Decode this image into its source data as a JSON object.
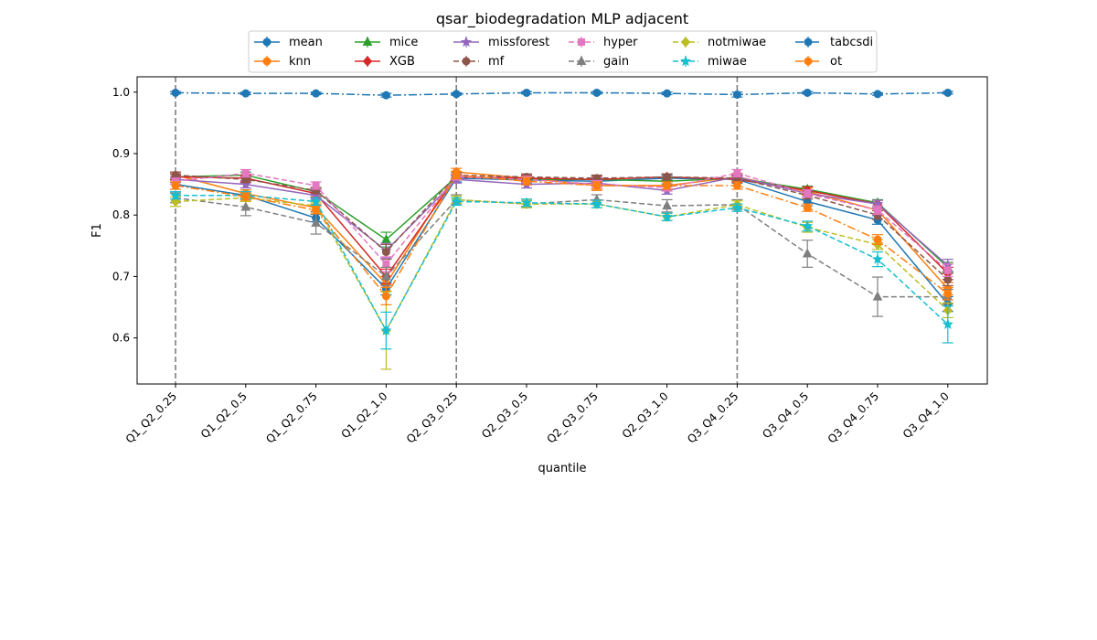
{
  "chart_data": {
    "type": "line",
    "title": "qsar_biodegradation MLP adjacent",
    "xlabel": "quantile",
    "ylabel": "F1",
    "ylim": [
      0.525,
      1.025
    ],
    "yticks": [
      "0.6",
      "0.7",
      "0.8",
      "0.9",
      "1.0"
    ],
    "categories": [
      "Q1_Q2_0.25",
      "Q1_Q2_0.5",
      "Q1_Q2_0.75",
      "Q1_Q2_1.0",
      "Q2_Q3_0.25",
      "Q2_Q3_0.5",
      "Q2_Q3_0.75",
      "Q2_Q3_1.0",
      "Q3_Q4_0.25",
      "Q3_Q4_0.5",
      "Q3_Q4_0.75",
      "Q3_Q4_1.0"
    ],
    "vlines_at_categories": [
      "Q1_Q2_0.25",
      "Q2_Q3_0.25",
      "Q3_Q4_0.25"
    ],
    "grid": false,
    "legend_position": "top-center",
    "series": [
      {
        "name": "mean",
        "color": "#1f77b4",
        "style": "solid",
        "marker": "circle",
        "values": [
          0.85,
          0.832,
          0.795,
          0.68,
          0.86,
          0.857,
          0.855,
          0.86,
          0.858,
          0.822,
          0.792,
          0.655
        ],
        "err": [
          0.008,
          0.006,
          0.006,
          0.01,
          0.006,
          0.005,
          0.005,
          0.005,
          0.006,
          0.007,
          0.007,
          0.012
        ]
      },
      {
        "name": "knn",
        "color": "#ff7f0e",
        "style": "solid",
        "marker": "circle",
        "values": [
          0.865,
          0.835,
          0.812,
          0.688,
          0.87,
          0.86,
          0.848,
          0.848,
          0.862,
          0.838,
          0.808,
          0.68
        ],
        "err": [
          0.005,
          0.006,
          0.006,
          0.012,
          0.006,
          0.005,
          0.008,
          0.006,
          0.006,
          0.006,
          0.007,
          0.01
        ]
      },
      {
        "name": "mice",
        "color": "#2ca02c",
        "style": "solid",
        "marker": "triangle",
        "values": [
          0.862,
          0.865,
          0.838,
          0.76,
          0.862,
          0.858,
          0.858,
          0.855,
          0.86,
          0.842,
          0.82,
          0.715
        ],
        "err": [
          0.005,
          0.005,
          0.005,
          0.012,
          0.005,
          0.005,
          0.005,
          0.005,
          0.005,
          0.005,
          0.005,
          0.008
        ]
      },
      {
        "name": "XGB",
        "color": "#d62728",
        "style": "solid",
        "marker": "diamond",
        "values": [
          0.862,
          0.86,
          0.835,
          0.7,
          0.862,
          0.86,
          0.858,
          0.862,
          0.858,
          0.84,
          0.818,
          0.705
        ],
        "err": [
          0.005,
          0.005,
          0.005,
          0.012,
          0.005,
          0.005,
          0.005,
          0.005,
          0.005,
          0.006,
          0.006,
          0.01
        ]
      },
      {
        "name": "missforest",
        "color": "#9467bd",
        "style": "solid",
        "marker": "star",
        "values": [
          0.858,
          0.85,
          0.832,
          0.742,
          0.858,
          0.85,
          0.852,
          0.84,
          0.862,
          0.835,
          0.818,
          0.718
        ],
        "err": [
          0.005,
          0.006,
          0.006,
          0.012,
          0.006,
          0.006,
          0.005,
          0.006,
          0.005,
          0.006,
          0.006,
          0.01
        ]
      },
      {
        "name": "mf",
        "color": "#8c564b",
        "style": "dashed",
        "marker": "circle",
        "values": [
          0.865,
          0.858,
          0.84,
          0.74,
          0.865,
          0.862,
          0.86,
          0.862,
          0.86,
          0.832,
          0.8,
          0.695
        ],
        "err": [
          0.005,
          0.005,
          0.005,
          0.012,
          0.005,
          0.005,
          0.005,
          0.005,
          0.005,
          0.006,
          0.007,
          0.01
        ]
      },
      {
        "name": "hyper",
        "color": "#e377c2",
        "style": "dashed",
        "marker": "square",
        "values": [
          0.855,
          0.868,
          0.848,
          0.72,
          0.862,
          0.858,
          0.85,
          0.845,
          0.868,
          0.835,
          0.808,
          0.71
        ],
        "err": [
          0.005,
          0.006,
          0.006,
          0.012,
          0.005,
          0.005,
          0.006,
          0.006,
          0.006,
          0.006,
          0.007,
          0.01
        ]
      },
      {
        "name": "gain",
        "color": "#7f7f7f",
        "style": "dashed",
        "marker": "triangle",
        "values": [
          0.828,
          0.813,
          0.787,
          0.7,
          0.825,
          0.818,
          0.825,
          0.815,
          0.817,
          0.737,
          0.667,
          0.667
        ],
        "err": [
          0.008,
          0.014,
          0.018,
          0.015,
          0.008,
          0.006,
          0.008,
          0.01,
          0.008,
          0.022,
          0.032,
          0.012
        ]
      },
      {
        "name": "notmiwae",
        "color": "#bcbd22",
        "style": "dashed",
        "marker": "diamond",
        "values": [
          0.822,
          0.828,
          0.815,
          0.612,
          0.825,
          0.818,
          0.818,
          0.797,
          0.817,
          0.78,
          0.752,
          0.645
        ],
        "err": [
          0.008,
          0.006,
          0.006,
          0.063,
          0.006,
          0.006,
          0.006,
          0.006,
          0.006,
          0.008,
          0.008,
          0.012
        ]
      },
      {
        "name": "miwae",
        "color": "#17becf",
        "style": "dashed",
        "marker": "star",
        "values": [
          0.832,
          0.832,
          0.822,
          0.612,
          0.822,
          0.82,
          0.818,
          0.797,
          0.812,
          0.782,
          0.728,
          0.622
        ],
        "err": [
          0.006,
          0.006,
          0.006,
          0.03,
          0.006,
          0.006,
          0.006,
          0.006,
          0.006,
          0.008,
          0.012,
          0.03
        ]
      },
      {
        "name": "tabcsdi",
        "color": "#1f77b4",
        "style": "dashdot",
        "marker": "circle",
        "values": [
          0.999,
          0.998,
          0.998,
          0.995,
          0.997,
          0.999,
          0.999,
          0.998,
          0.996,
          0.999,
          0.997,
          0.999
        ],
        "err": [
          0.002,
          0.002,
          0.002,
          0.003,
          0.002,
          0.002,
          0.002,
          0.002,
          0.004,
          0.002,
          0.002,
          0.002
        ]
      },
      {
        "name": "ot",
        "color": "#ff7f0e",
        "style": "dashdot",
        "marker": "circle",
        "values": [
          0.848,
          0.83,
          0.808,
          0.668,
          0.865,
          0.855,
          0.848,
          0.848,
          0.848,
          0.812,
          0.76,
          0.672
        ],
        "err": [
          0.006,
          0.006,
          0.006,
          0.014,
          0.006,
          0.006,
          0.006,
          0.006,
          0.006,
          0.006,
          0.008,
          0.01
        ]
      }
    ]
  }
}
